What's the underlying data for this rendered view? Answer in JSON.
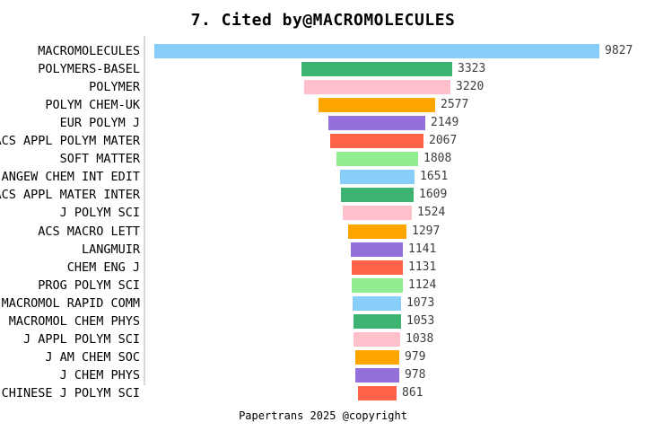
{
  "title": "7. Cited by@MACROMOLECULES",
  "footer": "Papertrans 2025 @copyright",
  "chart_data": {
    "type": "bar",
    "subtype": "horizontal-centered-funnel",
    "title": "7. Cited by@MACROMOLECULES",
    "xlabel": "",
    "ylabel": "",
    "grid": false,
    "legend": false,
    "value_labels_shown": true,
    "categories": [
      "MACROMOLECULES",
      "POLYMERS-BASEL",
      "POLYMER",
      "POLYM CHEM-UK",
      "EUR POLYM J",
      "ACS APPL POLYM MATER",
      "SOFT MATTER",
      "ANGEW CHEM INT EDIT",
      "ACS APPL MATER INTER",
      "J POLYM SCI",
      "ACS MACRO LETT",
      "LANGMUIR",
      "CHEM ENG J",
      "PROG POLYM SCI",
      "MACROMOL RAPID COMM",
      "MACROMOL CHEM PHYS",
      "J APPL POLYM SCI",
      "J AM CHEM SOC",
      "J CHEM PHYS",
      "CHINESE J POLYM SCI"
    ],
    "values": [
      9827,
      3323,
      3220,
      2577,
      2149,
      2067,
      1808,
      1651,
      1609,
      1524,
      1297,
      1141,
      1131,
      1124,
      1073,
      1053,
      1038,
      979,
      978,
      861
    ],
    "palette": [
      "#87CEFA",
      "#3CB371",
      "#FFC0CB",
      "#FFA500",
      "#9370DB",
      "#FF6347",
      "#90EE90"
    ],
    "axis_line_color": "#d9d9d9",
    "value_label_color": "#3d3d3d",
    "category_label_color": "#000000"
  }
}
